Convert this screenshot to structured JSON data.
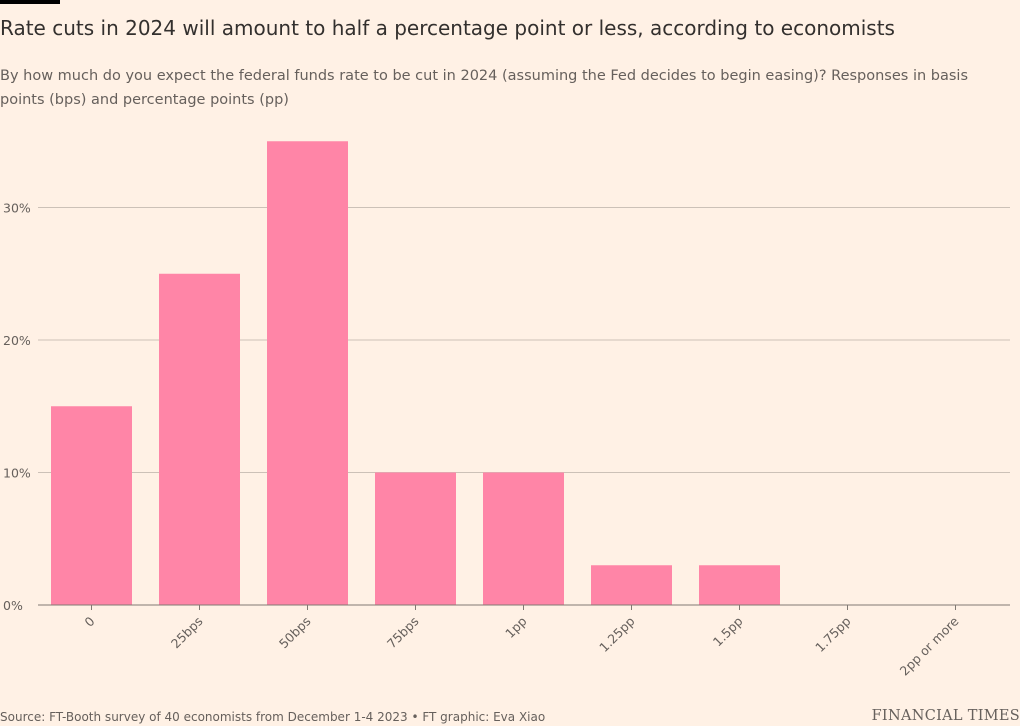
{
  "title": "Rate cuts in 2024 will amount to half a percentage point or less, according to economists",
  "subtitle": "By how much do you expect the federal funds rate to be cut in 2024 (assuming the Fed decides to begin easing)? Responses in basis points (bps) and percentage points (pp)",
  "source": "Source: FT-Booth survey of 40 economists from December 1-4 2023 • FT graphic: Eva Xiao",
  "logo": "FINANCIAL TIMES",
  "colors": {
    "background": "#fff1e5",
    "bar": "#ff85a7",
    "gridline": "#ccc1b7",
    "text": "#33302e",
    "muted_text": "#66605c"
  },
  "chart_data": {
    "type": "bar",
    "categories": [
      "0",
      "25bps",
      "50bps",
      "75bps",
      "1pp",
      "1.25pp",
      "1.5pp",
      "1.75pp",
      "2pp or more"
    ],
    "values": [
      15,
      25,
      35,
      10,
      10,
      3,
      3,
      0,
      0
    ],
    "unit": "%",
    "ylim": [
      0,
      35
    ],
    "yticks": [
      0,
      10,
      20,
      30
    ],
    "ytick_labels": [
      "0%",
      "10%",
      "20%",
      "30%"
    ],
    "grid": true
  }
}
